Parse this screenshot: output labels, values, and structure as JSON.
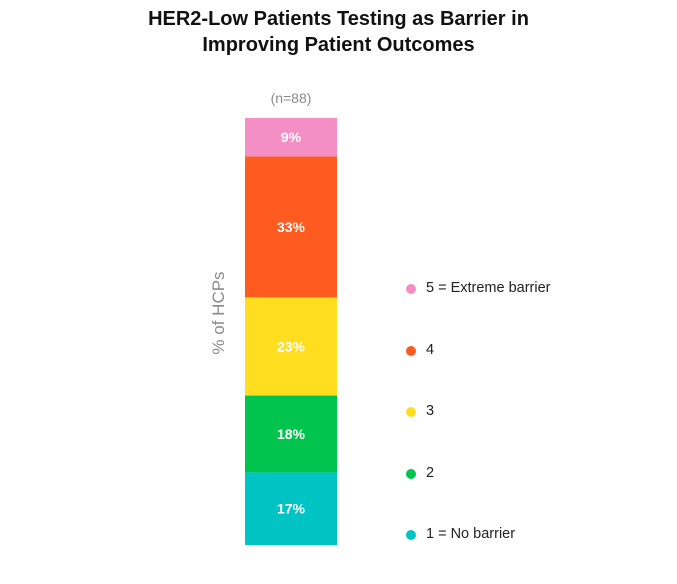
{
  "chart_data": {
    "type": "bar",
    "stacked": true,
    "title_lines": [
      "HER2-Low Patients Testing as Barrier in",
      "Improving Patient Outcomes"
    ],
    "ylabel": "% of HCPs",
    "n_label": "(n=88)",
    "ylim": [
      0,
      100
    ],
    "grid": false,
    "legend_position": "right",
    "series": [
      {
        "name": "1 = No barrier",
        "value": 17,
        "label": "17%",
        "color": "#00C4C4"
      },
      {
        "name": "2",
        "value": 18,
        "label": "18%",
        "color": "#00C44E"
      },
      {
        "name": "3",
        "value": 23,
        "label": "23%",
        "color": "#FFDD1F"
      },
      {
        "name": "4",
        "value": 33,
        "label": "33%",
        "color": "#FF5A1F"
      },
      {
        "name": "5 = Extreme barrier",
        "value": 9,
        "label": "9%",
        "color": "#F48FC6"
      }
    ]
  }
}
